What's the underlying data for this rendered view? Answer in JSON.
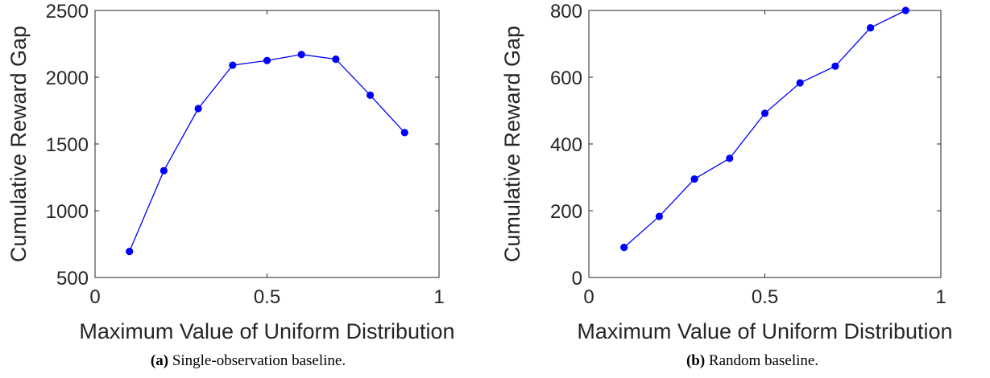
{
  "chart_data": [
    {
      "type": "line",
      "xlabel": "Maximum Value of Uniform Distribution",
      "ylabel": "Cumulative Reward Gap",
      "xlim": [
        0,
        1
      ],
      "ylim": [
        500,
        2500
      ],
      "xticks": [
        0,
        0.5,
        1
      ],
      "xtick_labels": [
        "0",
        "0.5",
        "1"
      ],
      "yticks": [
        500,
        1000,
        1500,
        2000,
        2500
      ],
      "ytick_labels": [
        "500",
        "1000",
        "1500",
        "2000",
        "2500"
      ],
      "grid": false,
      "color": "#0000ff",
      "series": [
        {
          "x": [
            0.1,
            0.2,
            0.3,
            0.4,
            0.5,
            0.6,
            0.7,
            0.8,
            0.9
          ],
          "values": [
            695,
            1300,
            1765,
            2090,
            2125,
            2170,
            2135,
            1865,
            1585
          ]
        }
      ]
    },
    {
      "type": "line",
      "xlabel": "Maximum Value of Uniform Distribution",
      "ylabel": "Cumulative Reward Gap",
      "xlim": [
        0,
        1
      ],
      "ylim": [
        0,
        800
      ],
      "xticks": [
        0,
        0.5,
        1
      ],
      "xtick_labels": [
        "0",
        "0.5",
        "1"
      ],
      "yticks": [
        0,
        200,
        400,
        600,
        800
      ],
      "ytick_labels": [
        "0",
        "200",
        "400",
        "600",
        "800"
      ],
      "grid": false,
      "color": "#0000ff",
      "series": [
        {
          "x": [
            0.1,
            0.2,
            0.3,
            0.4,
            0.5,
            0.6,
            0.7,
            0.8,
            0.9
          ],
          "values": [
            90,
            183,
            295,
            357,
            492,
            583,
            633,
            748,
            800
          ]
        }
      ]
    }
  ],
  "captions": [
    {
      "tag": "(a)",
      "text": " Single-observation baseline."
    },
    {
      "tag": "(b)",
      "text": " Random baseline."
    }
  ]
}
